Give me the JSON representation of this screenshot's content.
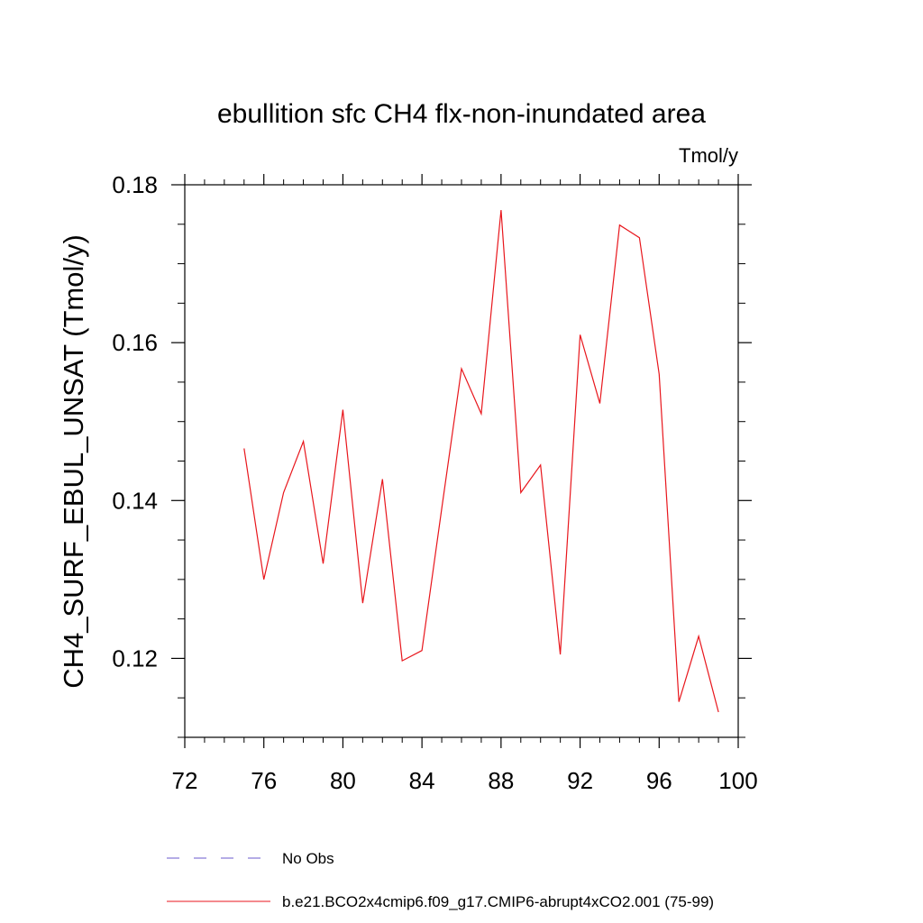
{
  "chart_data": {
    "type": "line",
    "title": "ebullition sfc CH4 flx-non-inundated area",
    "units_label": "Tmol/y",
    "xlabel": "",
    "ylabel": "CH4_SURF_EBUL_UNSAT  (Tmol/y)",
    "xlim": [
      72,
      100
    ],
    "ylim": [
      0.11,
      0.18
    ],
    "x_ticks": [
      72,
      76,
      80,
      84,
      88,
      92,
      96,
      100
    ],
    "y_ticks": [
      0.12,
      0.14,
      0.16,
      0.18
    ],
    "y_tick_labels": [
      "0.12",
      "0.14",
      "0.16",
      "0.18"
    ],
    "y_minor_step": 0.005,
    "x_minor_step": 1,
    "grid": false,
    "series": [
      {
        "name": "b.e21.BCO2x4cmip6.f09_g17.CMIP6-abrupt4xCO2.001 (75-99)",
        "color": "#e8161c",
        "dash": "solid",
        "x": [
          75,
          76,
          77,
          78,
          79,
          80,
          81,
          82,
          83,
          84,
          85,
          86,
          87,
          88,
          89,
          90,
          91,
          92,
          93,
          94,
          95,
          96,
          97,
          98,
          99
        ],
        "values": [
          0.1466,
          0.13,
          0.141,
          0.1475,
          0.132,
          0.1515,
          0.127,
          0.1427,
          0.1197,
          0.121,
          0.139,
          0.1567,
          0.151,
          0.1768,
          0.141,
          0.1445,
          0.1205,
          0.161,
          0.1523,
          0.1749,
          0.1733,
          0.156,
          0.1145,
          0.1228,
          0.1132
        ]
      }
    ],
    "legend": [
      {
        "label": "No Obs",
        "color": "#6a5acd",
        "dash": "dashed"
      },
      {
        "label": "b.e21.BCO2x4cmip6.f09_g17.CMIP6-abrupt4xCO2.001 (75-99)",
        "color": "#e8161c",
        "dash": "solid"
      }
    ]
  }
}
